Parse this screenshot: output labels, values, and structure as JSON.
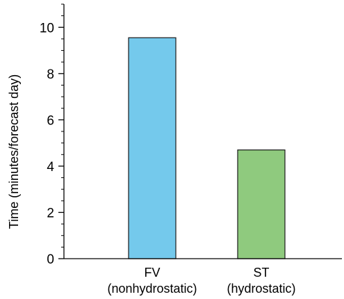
{
  "chart_data": {
    "type": "bar",
    "categories": [
      [
        "FV",
        "(nonhydrostatic)"
      ],
      [
        "ST",
        "(hydrostatic)"
      ]
    ],
    "values": [
      9.55,
      4.7
    ],
    "colors": [
      "#74c9ec",
      "#8fca7e"
    ],
    "title": "",
    "xlabel": "",
    "ylabel": "Time (minutes/forecast day)",
    "ylim": [
      0,
      11
    ],
    "yticks": [
      "0",
      "2",
      "4",
      "6",
      "8",
      "10"
    ],
    "minor_tick_step": 0.5,
    "grid": false
  }
}
